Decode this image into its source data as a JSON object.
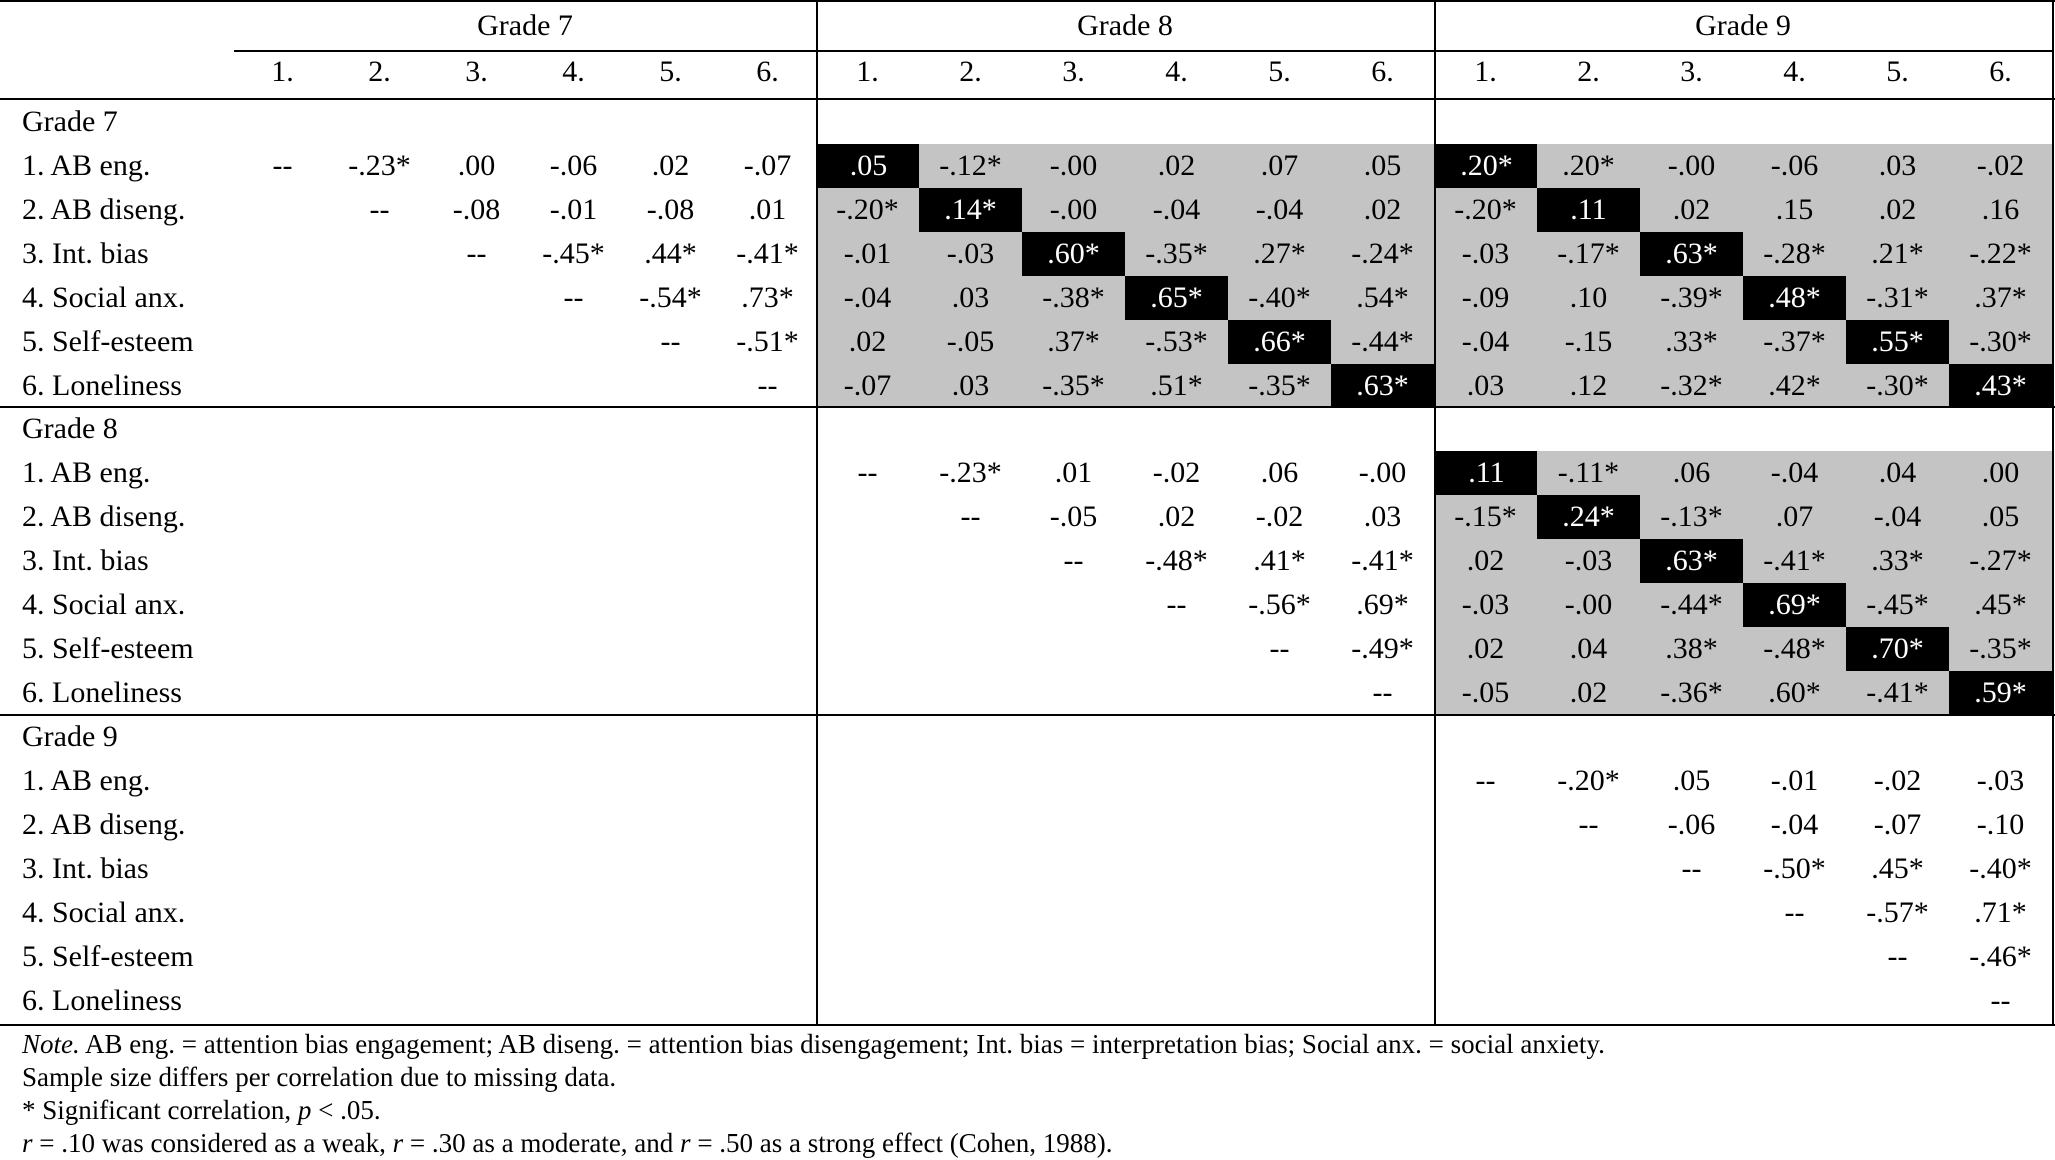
{
  "header": {
    "grades": [
      "Grade 7",
      "Grade 8",
      "Grade 9"
    ],
    "columns": [
      "1.",
      "2.",
      "3.",
      "4.",
      "5.",
      "6."
    ]
  },
  "sections": [
    {
      "title": "Grade 7",
      "rows": [
        {
          "label": "1. AB eng.",
          "values": [
            "--",
            "-.23*",
            ".00",
            "-.06",
            ".02",
            "-.07",
            ".05",
            "-.12*",
            "-.00",
            ".02",
            ".07",
            ".05",
            ".20*",
            ".20*",
            "-.00",
            "-.06",
            ".03",
            "-.02"
          ]
        },
        {
          "label": "2. AB diseng.",
          "values": [
            "",
            "--",
            "-.08",
            "-.01",
            "-.08",
            ".01",
            "-.20*",
            ".14*",
            "-.00",
            "-.04",
            "-.04",
            ".02",
            "-.20*",
            ".11",
            ".02",
            ".15",
            ".02",
            ".16"
          ]
        },
        {
          "label": "3. Int. bias",
          "values": [
            "",
            "",
            "--",
            "-.45*",
            ".44*",
            "-.41*",
            "-.01",
            "-.03",
            ".60*",
            "-.35*",
            ".27*",
            "-.24*",
            "-.03",
            "-.17*",
            ".63*",
            "-.28*",
            ".21*",
            "-.22*"
          ]
        },
        {
          "label": "4. Social anx.",
          "values": [
            "",
            "",
            "",
            "--",
            "-.54*",
            ".73*",
            "-.04",
            ".03",
            "-.38*",
            ".65*",
            "-.40*",
            ".54*",
            "-.09",
            ".10",
            "-.39*",
            ".48*",
            "-.31*",
            ".37*"
          ]
        },
        {
          "label": "5. Self-esteem",
          "values": [
            "",
            "",
            "",
            "",
            "--",
            "-.51*",
            ".02",
            "-.05",
            ".37*",
            "-.53*",
            ".66*",
            "-.44*",
            "-.04",
            "-.15",
            ".33*",
            "-.37*",
            ".55*",
            "-.30*"
          ]
        },
        {
          "label": "6. Loneliness",
          "values": [
            "",
            "",
            "",
            "",
            "",
            "--",
            "-.07",
            ".03",
            "-.35*",
            ".51*",
            "-.35*",
            ".63*",
            ".03",
            ".12",
            "-.32*",
            ".42*",
            "-.30*",
            ".43*"
          ]
        }
      ]
    },
    {
      "title": "Grade 8",
      "rows": [
        {
          "label": "1. AB eng.",
          "values": [
            "",
            "",
            "",
            "",
            "",
            "",
            "--",
            "-.23*",
            ".01",
            "-.02",
            ".06",
            "-.00",
            ".11",
            "-.11*",
            ".06",
            "-.04",
            ".04",
            ".00"
          ]
        },
        {
          "label": "2. AB diseng.",
          "values": [
            "",
            "",
            "",
            "",
            "",
            "",
            "",
            "--",
            "-.05",
            ".02",
            "-.02",
            ".03",
            "-.15*",
            ".24*",
            "-.13*",
            ".07",
            "-.04",
            ".05"
          ]
        },
        {
          "label": "3. Int. bias",
          "values": [
            "",
            "",
            "",
            "",
            "",
            "",
            "",
            "",
            "--",
            "-.48*",
            ".41*",
            "-.41*",
            ".02",
            "-.03",
            ".63*",
            "-.41*",
            ".33*",
            "-.27*"
          ]
        },
        {
          "label": "4. Social anx.",
          "values": [
            "",
            "",
            "",
            "",
            "",
            "",
            "",
            "",
            "",
            "--",
            "-.56*",
            ".69*",
            "-.03",
            "-.00",
            "-.44*",
            ".69*",
            "-.45*",
            ".45*"
          ]
        },
        {
          "label": "5. Self-esteem",
          "values": [
            "",
            "",
            "",
            "",
            "",
            "",
            "",
            "",
            "",
            "",
            "--",
            "-.49*",
            ".02",
            ".04",
            ".38*",
            "-.48*",
            ".70*",
            "-.35*"
          ]
        },
        {
          "label": "6. Loneliness",
          "values": [
            "",
            "",
            "",
            "",
            "",
            "",
            "",
            "",
            "",
            "",
            "",
            "--",
            "-.05",
            ".02",
            "-.36*",
            ".60*",
            "-.41*",
            ".59*"
          ]
        }
      ]
    },
    {
      "title": "Grade 9",
      "rows": [
        {
          "label": "1. AB eng.",
          "values": [
            "",
            "",
            "",
            "",
            "",
            "",
            "",
            "",
            "",
            "",
            "",
            "",
            "--",
            "-.20*",
            ".05",
            "-.01",
            "-.02",
            "-.03"
          ]
        },
        {
          "label": "2. AB diseng.",
          "values": [
            "",
            "",
            "",
            "",
            "",
            "",
            "",
            "",
            "",
            "",
            "",
            "",
            "",
            "--",
            "-.06",
            "-.04",
            "-.07",
            "-.10"
          ]
        },
        {
          "label": "3. Int. bias",
          "values": [
            "",
            "",
            "",
            "",
            "",
            "",
            "",
            "",
            "",
            "",
            "",
            "",
            "",
            "",
            "--",
            "-.50*",
            ".45*",
            "-.40*"
          ]
        },
        {
          "label": "4. Social anx.",
          "values": [
            "",
            "",
            "",
            "",
            "",
            "",
            "",
            "",
            "",
            "",
            "",
            "",
            "",
            "",
            "",
            "--",
            "-.57*",
            ".71*"
          ]
        },
        {
          "label": "5. Self-esteem",
          "values": [
            "",
            "",
            "",
            "",
            "",
            "",
            "",
            "",
            "",
            "",
            "",
            "",
            "",
            "",
            "",
            "",
            "--",
            "-.46*"
          ]
        },
        {
          "label": "6. Loneliness",
          "values": [
            "",
            "",
            "",
            "",
            "",
            "",
            "",
            "",
            "",
            "",
            "",
            "",
            "",
            "",
            "",
            "",
            "",
            "--"
          ]
        }
      ]
    }
  ],
  "notes": {
    "line1_lead": "Note.",
    "line1_text": " AB eng. = attention bias engagement; AB diseng. = attention bias disengagement; Int. bias = interpretation bias; Social anx. = social anxiety.",
    "line2": "Sample size differs per correlation due to missing data.",
    "line3_a": "* Significant correlation, ",
    "line3_p": "p",
    "line3_b": " < .05.",
    "line4_r1": "r",
    "line4_a": " = .10 was considered as a weak, ",
    "line4_r2": "r",
    "line4_b": " = .30 as a moderate, and ",
    "line4_r3": "r",
    "line4_c": " = .50 as a strong effect (Cohen, 1988)."
  },
  "style": {
    "gray_fill": "#c4c4c4",
    "diagonal_fill": "#000000"
  }
}
